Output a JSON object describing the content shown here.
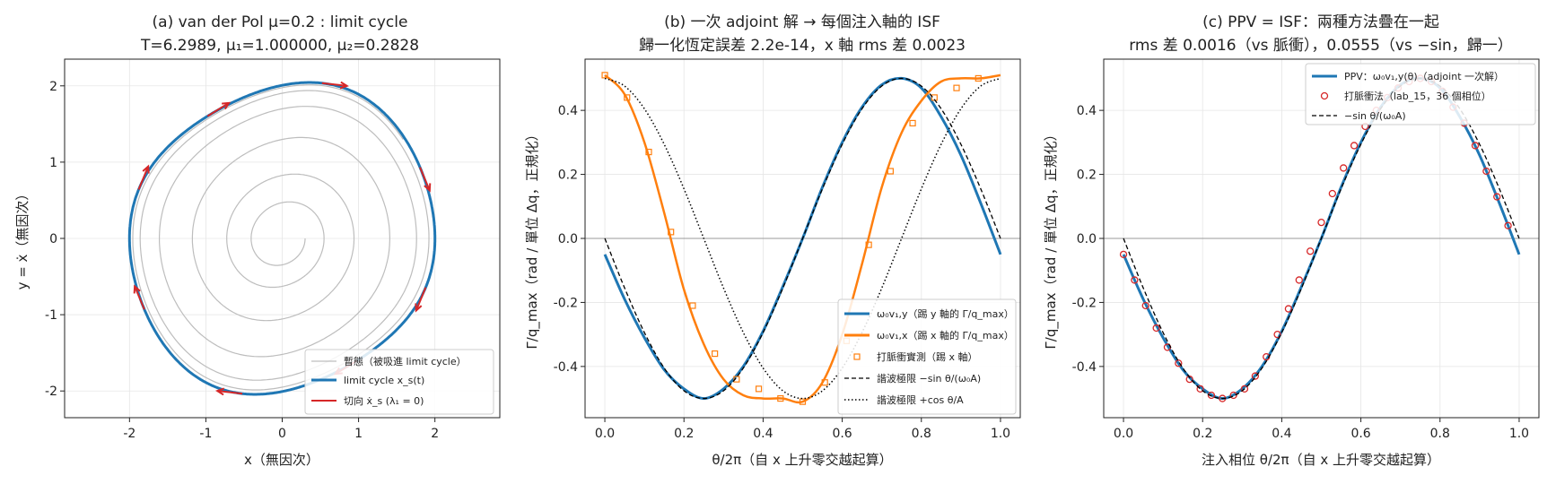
{
  "colors": {
    "blue": "#1f77b4",
    "orange": "#ff7f0e",
    "red": "#d62728",
    "grey": "#bdbdbd",
    "black": "#000000"
  },
  "chart_data": [
    {
      "type": "line",
      "title": "(a) van der Pol μ=0.2 : limit cycle",
      "subtitle": "T=6.2989, μ₁=1.000000, μ₂=0.2828",
      "xlabel": "x（無因次）",
      "ylabel": "y = ẋ（無因次）",
      "xlim": [
        -2.85,
        2.85
      ],
      "ylim": [
        -2.35,
        2.35
      ],
      "xticks": [
        "-2",
        "-1",
        "0",
        "1",
        "2"
      ],
      "yticks": [
        "-2",
        "-1",
        "0",
        "1",
        "2"
      ],
      "grid": true,
      "legend_position": "lower-right",
      "legend": [
        "暫態（被吸進 limit cycle）",
        "limit cycle x_s(t)",
        "切向 ẋ_s (λ₁ = 0)"
      ],
      "mu": 0.2,
      "series": [
        {
          "name": "暫態（被吸進 limit cycle）",
          "kind": "spiral",
          "x0": [
            0.3,
            0.0
          ],
          "t_end": 37
        },
        {
          "name": "limit cycle x_s(t)",
          "kind": "cycle",
          "amplitude": 2.0
        },
        {
          "name": "切向 ẋ_s (λ₁ = 0)",
          "kind": "tangent-arrows",
          "count": 8
        }
      ]
    },
    {
      "type": "line",
      "title": "(b) 一次 adjoint 解 → 每個注入軸的 ISF",
      "subtitle": "歸一化恆定誤差 2.2e-14，x 軸 rms 差 0.0023",
      "xlabel": "θ/2π（自 x 上升零交越起算）",
      "ylabel": "Γ/q_max（rad / 單位 Δq，正規化）",
      "xlim": [
        -0.05,
        1.05
      ],
      "ylim": [
        -0.56,
        0.56
      ],
      "xticks": [
        "0.0",
        "0.2",
        "0.4",
        "0.6",
        "0.8",
        "1.0"
      ],
      "yticks": [
        "-0.4",
        "-0.2",
        "0.0",
        "0.2",
        "0.4"
      ],
      "grid": true,
      "legend_position": "lower-right",
      "legend": [
        "ω₀v₁,y（踢 y 軸的 Γ/q_max）",
        "ω₀v₁,x（踢 x 軸的 Γ/q_max）",
        "打脈衝實測（踢 x 軸）",
        "諧波極限 −sin θ/(ω₀A)",
        "諧波極限 +cos θ/A"
      ],
      "series": [
        {
          "name": "ω₀v₁,y（踢 y 軸的 Γ/q_max）",
          "x": [
            0,
            0.05,
            0.1,
            0.15,
            0.2,
            0.25,
            0.3,
            0.35,
            0.4,
            0.45,
            0.5,
            0.55,
            0.6,
            0.65,
            0.7,
            0.75,
            0.8,
            0.85,
            0.9,
            0.95,
            1.0
          ],
          "y": [
            -0.05,
            -0.19,
            -0.31,
            -0.41,
            -0.47,
            -0.5,
            -0.47,
            -0.4,
            -0.29,
            -0.15,
            0.0,
            0.16,
            0.3,
            0.41,
            0.48,
            0.5,
            0.47,
            0.38,
            0.26,
            0.11,
            -0.05
          ]
        },
        {
          "name": "ω₀v₁,x（踢 x 軸的 Γ/q_max）",
          "x": [
            0,
            0.05,
            0.1,
            0.15,
            0.2,
            0.25,
            0.3,
            0.35,
            0.4,
            0.45,
            0.5,
            0.55,
            0.6,
            0.65,
            0.7,
            0.75,
            0.8,
            0.85,
            0.9,
            0.95,
            1.0
          ],
          "y": [
            0.51,
            0.45,
            0.3,
            0.08,
            -0.16,
            -0.33,
            -0.44,
            -0.49,
            -0.5,
            -0.5,
            -0.51,
            -0.45,
            -0.3,
            -0.08,
            0.16,
            0.33,
            0.43,
            0.49,
            0.5,
            0.5,
            0.51
          ]
        },
        {
          "name": "打脈衝實測（踢 x 軸）",
          "x": [
            0.0,
            0.056,
            0.111,
            0.167,
            0.222,
            0.278,
            0.333,
            0.389,
            0.444,
            0.5,
            0.556,
            0.611,
            0.667,
            0.722,
            0.778,
            0.833,
            0.889,
            0.944
          ],
          "y": [
            0.51,
            0.44,
            0.27,
            0.02,
            -0.21,
            -0.36,
            -0.44,
            -0.47,
            -0.5,
            -0.51,
            -0.45,
            -0.32,
            -0.02,
            0.21,
            0.36,
            0.44,
            0.47,
            0.5
          ]
        },
        {
          "name": "諧波極限 −sin θ/(ω₀A)",
          "x": [
            0,
            0.05,
            0.1,
            0.15,
            0.2,
            0.25,
            0.3,
            0.35,
            0.4,
            0.45,
            0.5,
            0.55,
            0.6,
            0.65,
            0.7,
            0.75,
            0.8,
            0.85,
            0.9,
            0.95,
            1.0
          ],
          "y": [
            0.0,
            -0.155,
            -0.294,
            -0.405,
            -0.476,
            -0.5,
            -0.476,
            -0.405,
            -0.294,
            -0.155,
            0.0,
            0.155,
            0.294,
            0.405,
            0.476,
            0.5,
            0.476,
            0.405,
            0.294,
            0.155,
            0.0
          ]
        },
        {
          "name": "諧波極限 +cos θ/A",
          "x": [
            0,
            0.05,
            0.1,
            0.15,
            0.2,
            0.25,
            0.3,
            0.35,
            0.4,
            0.45,
            0.5,
            0.55,
            0.6,
            0.65,
            0.7,
            0.75,
            0.8,
            0.85,
            0.9,
            0.95,
            1.0
          ],
          "y": [
            0.5,
            0.476,
            0.405,
            0.294,
            0.155,
            0.0,
            -0.155,
            -0.294,
            -0.405,
            -0.476,
            -0.5,
            -0.476,
            -0.405,
            -0.294,
            -0.155,
            0.0,
            0.155,
            0.294,
            0.405,
            0.476,
            0.5
          ]
        }
      ]
    },
    {
      "type": "line",
      "title": "(c) PPV = ISF：兩種方法疊在一起",
      "subtitle": "rms 差 0.0016（vs 脈衝），0.0555（vs −sin，歸一）",
      "xlabel": "注入相位 θ/2π（自 x 上升零交越起算）",
      "ylabel": "Γ/q_max（rad / 單位 Δq，正規化）",
      "xlim": [
        -0.05,
        1.05
      ],
      "ylim": [
        -0.56,
        0.56
      ],
      "xticks": [
        "0.0",
        "0.2",
        "0.4",
        "0.6",
        "0.8",
        "1.0"
      ],
      "yticks": [
        "-0.4",
        "-0.2",
        "0.0",
        "0.2",
        "0.4"
      ],
      "grid": true,
      "legend_position": "top-right",
      "legend": [
        "PPV：ω₀v₁,y(θ)（adjoint 一次解）",
        "打脈衝法（lab_15，36 個相位）",
        "−sin θ/(ω₀A)"
      ],
      "series": [
        {
          "name": "PPV：ω₀v₁,y(θ)（adjoint 一次解）",
          "x": [
            0,
            0.05,
            0.1,
            0.15,
            0.2,
            0.25,
            0.3,
            0.35,
            0.4,
            0.45,
            0.5,
            0.55,
            0.6,
            0.65,
            0.7,
            0.75,
            0.8,
            0.85,
            0.9,
            0.95,
            1.0
          ],
          "y": [
            -0.05,
            -0.19,
            -0.31,
            -0.41,
            -0.47,
            -0.5,
            -0.47,
            -0.4,
            -0.29,
            -0.15,
            0.0,
            0.16,
            0.3,
            0.41,
            0.48,
            0.5,
            0.47,
            0.38,
            0.26,
            0.11,
            -0.05
          ]
        },
        {
          "name": "打脈衝法（lab_15，36 個相位）",
          "x": [
            0.0,
            0.028,
            0.056,
            0.083,
            0.111,
            0.139,
            0.167,
            0.194,
            0.222,
            0.25,
            0.278,
            0.306,
            0.333,
            0.361,
            0.389,
            0.417,
            0.444,
            0.472,
            0.5,
            0.528,
            0.556,
            0.583,
            0.611,
            0.639,
            0.667,
            0.694,
            0.722,
            0.75,
            0.778,
            0.806,
            0.833,
            0.861,
            0.889,
            0.917,
            0.944,
            0.972
          ],
          "y": [
            -0.05,
            -0.13,
            -0.21,
            -0.28,
            -0.34,
            -0.39,
            -0.44,
            -0.47,
            -0.49,
            -0.5,
            -0.49,
            -0.47,
            -0.43,
            -0.37,
            -0.3,
            -0.22,
            -0.13,
            -0.04,
            0.05,
            0.14,
            0.22,
            0.29,
            0.35,
            0.4,
            0.44,
            0.47,
            0.49,
            0.5,
            0.49,
            0.46,
            0.41,
            0.36,
            0.29,
            0.21,
            0.13,
            0.04
          ]
        },
        {
          "name": "−sin θ/(ω₀A)",
          "x": [
            0,
            0.05,
            0.1,
            0.15,
            0.2,
            0.25,
            0.3,
            0.35,
            0.4,
            0.45,
            0.5,
            0.55,
            0.6,
            0.65,
            0.7,
            0.75,
            0.8,
            0.85,
            0.9,
            0.95,
            1.0
          ],
          "y": [
            0.0,
            -0.155,
            -0.294,
            -0.405,
            -0.476,
            -0.5,
            -0.476,
            -0.405,
            -0.294,
            -0.155,
            0.0,
            0.155,
            0.294,
            0.405,
            0.476,
            0.5,
            0.476,
            0.405,
            0.294,
            0.155,
            0.0
          ]
        }
      ]
    }
  ]
}
